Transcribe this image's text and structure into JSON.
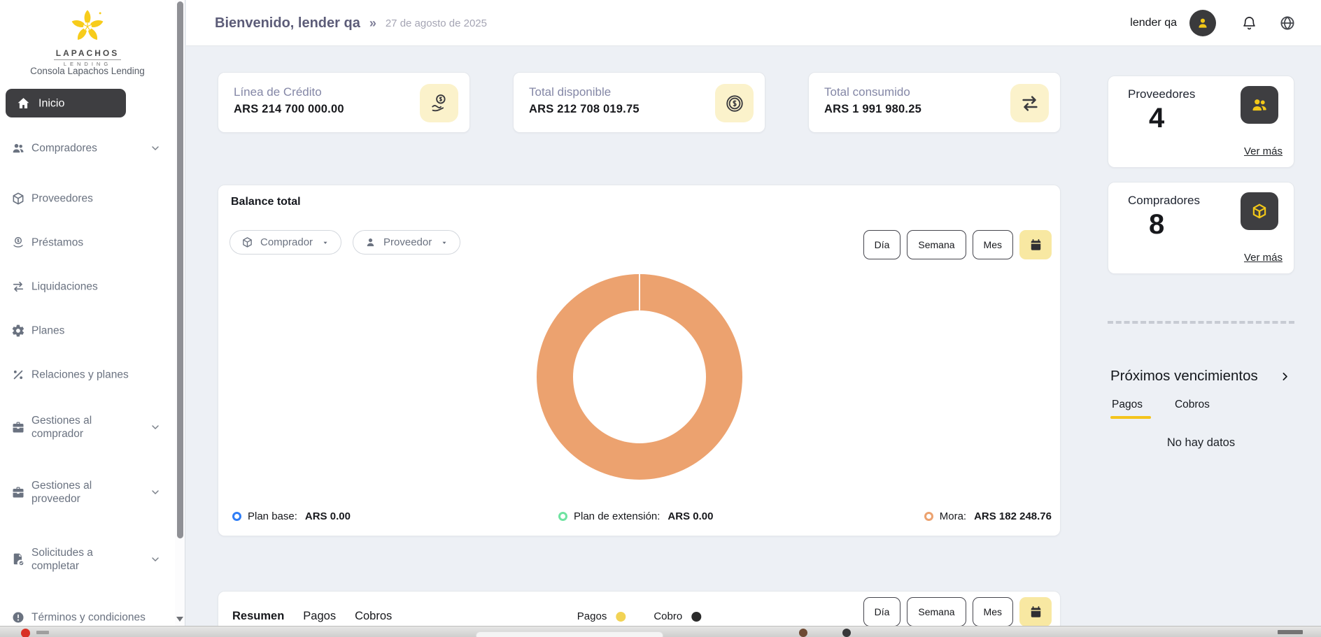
{
  "header": {
    "title": "Bienvenido, lender qa",
    "separator": "»",
    "date": "27 de agosto de 2025",
    "user": "lender qa"
  },
  "sidebar": {
    "logo_line1": "LAPACHOS",
    "logo_line2": "LENDING",
    "console_label": "Consola Lapachos Lending",
    "items": [
      {
        "key": "inicio",
        "label": "Inicio",
        "icon": "home-icon",
        "active": true,
        "chevron": false,
        "two_line": false
      },
      {
        "key": "compradores",
        "label": "Compradores",
        "icon": "users-icon",
        "active": false,
        "chevron": true,
        "two_line": false
      },
      {
        "key": "proveedores",
        "label": "Proveedores",
        "icon": "cube-icon",
        "active": false,
        "chevron": false,
        "two_line": false
      },
      {
        "key": "prestamos",
        "label": "Préstamos",
        "icon": "coins-icon",
        "active": false,
        "chevron": false,
        "two_line": false
      },
      {
        "key": "liquidaciones",
        "label": "Liquidaciones",
        "icon": "swap-icon",
        "active": false,
        "chevron": false,
        "two_line": false
      },
      {
        "key": "planes",
        "label": "Planes",
        "icon": "gear-icon",
        "active": false,
        "chevron": false,
        "two_line": false
      },
      {
        "key": "relaciones-y-planes",
        "label": "Relaciones y planes",
        "icon": "percent-icon",
        "active": false,
        "chevron": false,
        "two_line": false
      },
      {
        "key": "gestiones-al-comprador",
        "label": "Gestiones al comprador",
        "icon": "briefcase-icon",
        "active": false,
        "chevron": true,
        "two_line": true
      },
      {
        "key": "gestiones-al-proveedor",
        "label": "Gestiones al proveedor",
        "icon": "briefcase-icon",
        "active": false,
        "chevron": true,
        "two_line": true
      },
      {
        "key": "solicitudes-a-completar",
        "label": "Solicitudes a completar",
        "icon": "doc-check-icon",
        "active": false,
        "chevron": true,
        "two_line": true
      },
      {
        "key": "terminos-y-condiciones",
        "label": "Términos y condiciones",
        "icon": "alert-circle-icon",
        "active": false,
        "chevron": false,
        "two_line": false
      }
    ]
  },
  "stats": [
    {
      "label": "Línea de Crédito",
      "value": "ARS 214 700 000.00",
      "icon": "hand-coin-icon"
    },
    {
      "label": "Total disponible",
      "value": "ARS 212 708 019.75",
      "icon": "coin-icon"
    },
    {
      "label": "Total consumido",
      "value": "ARS 1 991 980.25",
      "icon": "swap-icon"
    }
  ],
  "balance": {
    "title": "Balance total",
    "filters": [
      {
        "label": "Comprador",
        "icon": "cube-icon"
      },
      {
        "label": "Proveedor",
        "icon": "person-icon"
      }
    ],
    "periods": [
      "Día",
      "Semana",
      "Mes"
    ],
    "legend": [
      {
        "label": "Plan base:",
        "value": "ARS 0.00",
        "color": "#2F7DF6"
      },
      {
        "label": "Plan de extensión:",
        "value": "ARS 0.00",
        "color": "#6FE3A1"
      },
      {
        "label": "Mora:",
        "value": "ARS 182 248.76",
        "color": "#ECA26F"
      }
    ]
  },
  "chart_data": {
    "type": "pie",
    "title": "Balance total",
    "labels": [
      "Plan base",
      "Plan de extensión",
      "Mora"
    ],
    "values": [
      0,
      0,
      182248.76
    ],
    "unit": "ARS",
    "colors": [
      "#2F7DF6",
      "#6FE3A1",
      "#ECA26F"
    ],
    "donut": true,
    "legend_position": "bottom"
  },
  "right_panel": {
    "cards": [
      {
        "label": "Proveedores",
        "count": "4",
        "icon": "users-icon",
        "link": "Ver más"
      },
      {
        "label": "Compradores",
        "count": "8",
        "icon": "cube-icon",
        "link": "Ver más"
      }
    ],
    "upcoming": {
      "title": "Próximos vencimientos",
      "tabs": [
        "Pagos",
        "Cobros"
      ],
      "active_tab": "Pagos",
      "empty": "No hay datos"
    }
  },
  "summary": {
    "tabs": [
      "Resumen",
      "Pagos",
      "Cobros"
    ],
    "active_tab": "Resumen",
    "legend": [
      {
        "label": "Pagos",
        "color": "#F2D355"
      },
      {
        "label": "Cobro",
        "color": "#2B2B2B"
      }
    ],
    "periods": [
      "Día",
      "Semana",
      "Mes"
    ]
  },
  "colors": {
    "accent_yellow": "#F2C718",
    "light_yellow": "#FBF2CB",
    "dark": "#3E3E41",
    "donut_orange": "#ECA26F",
    "page_bg": "#EDF0F5"
  }
}
